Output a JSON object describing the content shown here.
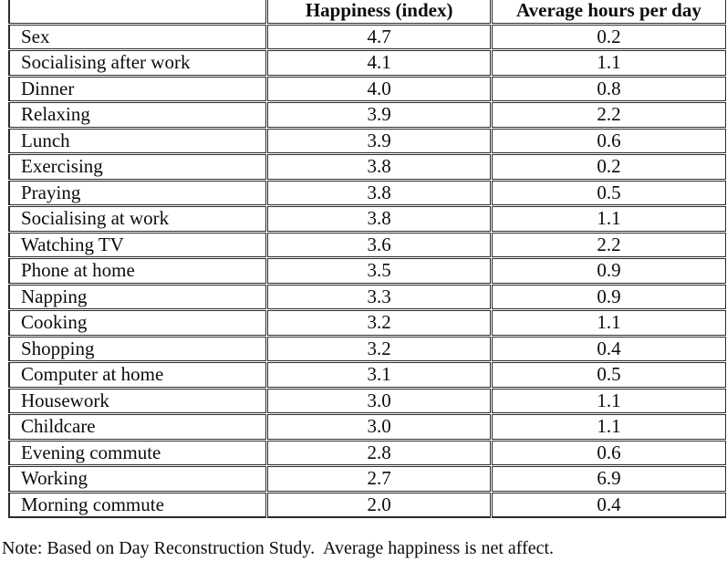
{
  "table": {
    "headers": [
      "",
      "Happiness (index)",
      "Average hours per day"
    ],
    "rows": [
      {
        "activity": "Sex",
        "happiness": "4.7",
        "hours": "0.2"
      },
      {
        "activity": "Socialising after work",
        "happiness": "4.1",
        "hours": "1.1"
      },
      {
        "activity": "Dinner",
        "happiness": "4.0",
        "hours": "0.8"
      },
      {
        "activity": "Relaxing",
        "happiness": "3.9",
        "hours": "2.2"
      },
      {
        "activity": "Lunch",
        "happiness": "3.9",
        "hours": "0.6"
      },
      {
        "activity": "Exercising",
        "happiness": "3.8",
        "hours": "0.2"
      },
      {
        "activity": "Praying",
        "happiness": "3.8",
        "hours": "0.5"
      },
      {
        "activity": "Socialising at work",
        "happiness": "3.8",
        "hours": "1.1"
      },
      {
        "activity": "Watching TV",
        "happiness": "3.6",
        "hours": "2.2"
      },
      {
        "activity": "Phone at home",
        "happiness": "3.5",
        "hours": "0.9"
      },
      {
        "activity": "Napping",
        "happiness": "3.3",
        "hours": "0.9"
      },
      {
        "activity": "Cooking",
        "happiness": "3.2",
        "hours": "1.1"
      },
      {
        "activity": "Shopping",
        "happiness": "3.2",
        "hours": "0.4"
      },
      {
        "activity": "Computer at home",
        "happiness": "3.1",
        "hours": "0.5"
      },
      {
        "activity": "Housework",
        "happiness": "3.0",
        "hours": "1.1"
      },
      {
        "activity": "Childcare",
        "happiness": "3.0",
        "hours": "1.1"
      },
      {
        "activity": "Evening commute",
        "happiness": "2.8",
        "hours": "0.6"
      },
      {
        "activity": "Working",
        "happiness": "2.7",
        "hours": "6.9"
      },
      {
        "activity": "Morning commute",
        "happiness": "2.0",
        "hours": "0.4"
      }
    ]
  },
  "note": "Note: Based on Day Reconstruction Study.  Average happiness is net affect.",
  "colors": {
    "border": "#2b2b2b",
    "text": "#0d0d0d",
    "background": "#ffffff"
  }
}
